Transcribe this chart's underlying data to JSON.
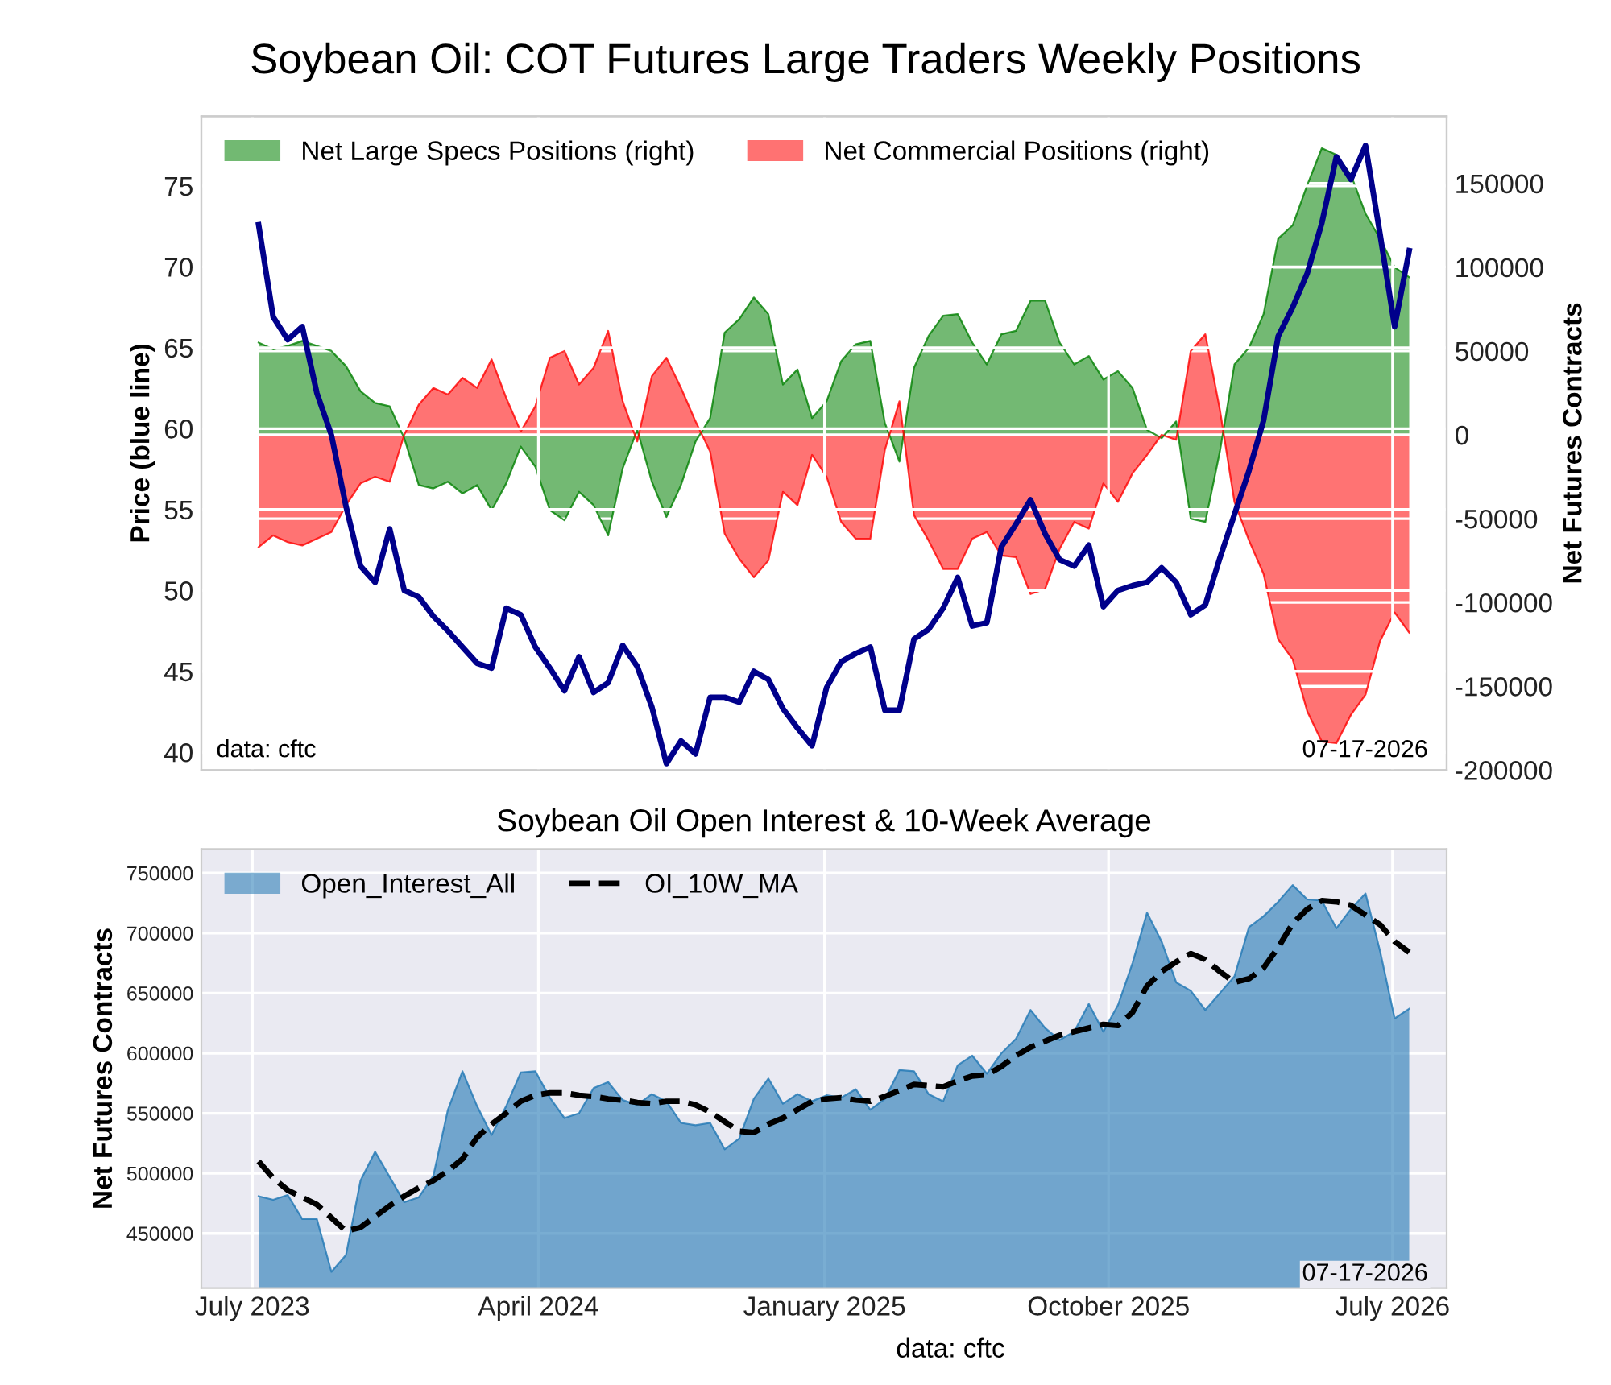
{
  "chart_data": [
    {
      "type": "line",
      "title": "Soybean Oil: COT Futures Large Traders Weekly Positions",
      "ylabel": "Price (blue line)",
      "y2label": "Net Futures Contracts",
      "x": [
        "2023-07-07",
        "2023-07-21",
        "2023-08-04",
        "2023-08-18",
        "2023-09-01",
        "2023-09-15",
        "2023-09-29",
        "2023-10-13",
        "2023-10-27",
        "2023-11-10",
        "2023-11-24",
        "2023-12-08",
        "2023-12-22",
        "2024-01-05",
        "2024-01-19",
        "2024-02-02",
        "2024-02-16",
        "2024-03-01",
        "2024-03-15",
        "2024-03-29",
        "2024-04-12",
        "2024-04-26",
        "2024-05-10",
        "2024-05-24",
        "2024-06-07",
        "2024-06-21",
        "2024-07-05",
        "2024-07-19",
        "2024-08-02",
        "2024-08-16",
        "2024-08-30",
        "2024-09-13",
        "2024-09-27",
        "2024-10-11",
        "2024-10-25",
        "2024-11-08",
        "2024-11-22",
        "2024-12-06",
        "2024-12-20",
        "2025-01-03",
        "2025-01-17",
        "2025-01-31",
        "2025-02-14",
        "2025-02-28",
        "2025-03-14",
        "2025-03-28",
        "2025-04-11",
        "2025-04-25",
        "2025-05-09",
        "2025-05-23",
        "2025-06-06",
        "2025-06-20",
        "2025-07-04",
        "2025-07-18",
        "2025-08-01",
        "2025-08-15",
        "2025-08-29",
        "2025-09-12",
        "2025-09-26",
        "2025-10-10",
        "2025-10-24",
        "2025-11-07",
        "2025-11-21",
        "2025-12-05",
        "2025-12-19",
        "2026-01-02",
        "2026-01-16",
        "2026-01-30",
        "2026-02-13",
        "2026-02-27",
        "2026-03-13",
        "2026-03-27",
        "2026-04-10",
        "2026-04-24",
        "2026-05-08",
        "2026-05-22",
        "2026-06-05",
        "2026-06-19",
        "2026-07-03",
        "2026-07-17"
      ],
      "xlim": [
        "2023-05-13",
        "2026-08-22"
      ],
      "xticks": [
        {
          "value": "2023-07-01",
          "label": null
        },
        {
          "value": "2024-04-01",
          "label": null
        },
        {
          "value": "2025-01-01",
          "label": null
        },
        {
          "value": "2025-10-01",
          "label": null
        },
        {
          "value": "2026-07-01",
          "label": null
        }
      ],
      "ylim": [
        38.9,
        79.3
      ],
      "yticks": [
        40,
        45,
        50,
        55,
        60,
        65,
        70,
        75
      ],
      "y2lim": [
        -200000,
        190000
      ],
      "y2ticks": [
        -200000,
        -150000,
        -100000,
        -50000,
        0,
        50000,
        100000,
        150000
      ],
      "tick_labels": "y",
      "grid": true,
      "legend": "top left",
      "marker": "none",
      "series": [
        {
          "axis": "y",
          "color": "#00008b",
          "values": [
            72.6,
            66.9,
            65.5,
            66.3,
            62.2,
            59.6,
            55.2,
            51.5,
            50.5,
            53.8,
            50.0,
            49.6,
            48.4,
            47.5,
            46.5,
            45.5,
            45.2,
            48.9,
            48.5,
            46.5,
            45.2,
            43.8,
            45.9,
            43.7,
            44.3,
            46.6,
            45.3,
            42.8,
            39.3,
            40.7,
            39.9,
            43.4,
            43.4,
            43.1,
            45.0,
            44.5,
            42.7,
            41.5,
            40.4,
            44.0,
            45.6,
            46.1,
            46.5,
            42.6,
            42.6,
            47.0,
            47.6,
            48.9,
            50.8,
            47.8,
            48.0,
            52.7,
            54.1,
            55.6,
            53.5,
            51.9,
            51.5,
            52.8,
            49.0,
            50.0,
            50.3,
            50.5,
            51.4,
            50.5,
            48.5,
            49.1,
            52.0,
            54.7,
            57.4,
            60.5,
            65.7,
            67.5,
            69.6,
            72.7,
            76.8,
            75.4,
            77.5,
            72.0,
            66.3,
            71.0
          ]
        },
        {
          "type": "area",
          "axis": "y2",
          "name": "Net Large Specs Positions (right)",
          "color": "#008000",
          "values": [
            55000,
            51000,
            53000,
            56000,
            53000,
            50000,
            41000,
            26000,
            19000,
            17000,
            -2000,
            -30000,
            -32000,
            -28000,
            -35000,
            -30000,
            -45000,
            -29000,
            -7000,
            -19000,
            -45000,
            -51000,
            -34000,
            -42000,
            -60000,
            -20000,
            3000,
            -28000,
            -49000,
            -30000,
            -4000,
            10000,
            61000,
            69000,
            82000,
            72000,
            30000,
            39000,
            10000,
            20000,
            44000,
            54000,
            56000,
            7000,
            -16000,
            40000,
            59000,
            71000,
            72000,
            55000,
            42000,
            60000,
            62000,
            80000,
            80000,
            55000,
            42000,
            47000,
            33000,
            38000,
            28000,
            3000,
            -2000,
            8000,
            -50000,
            -52000,
            -10000,
            42000,
            52000,
            72000,
            117000,
            125000,
            149000,
            171000,
            167000,
            155000,
            132000,
            117000,
            100000,
            94000
          ]
        },
        {
          "type": "area",
          "axis": "y2",
          "name": "Net Commercial Positions (right)",
          "color": "#ff0000",
          "values": [
            -67000,
            -60000,
            -64000,
            -66000,
            -62000,
            -58000,
            -42000,
            -29000,
            -25000,
            -28000,
            0,
            18000,
            28000,
            24000,
            34000,
            28000,
            45000,
            22000,
            2000,
            17000,
            46000,
            50000,
            30000,
            40000,
            62000,
            20000,
            -4000,
            35000,
            46000,
            28000,
            8000,
            -10000,
            -59000,
            -74000,
            -85000,
            -75000,
            -34000,
            -42000,
            -12000,
            -25000,
            -52000,
            -62000,
            -62000,
            -9000,
            20000,
            -48000,
            -63000,
            -80000,
            -80000,
            -62000,
            -58000,
            -72000,
            -73000,
            -95000,
            -92000,
            -68000,
            -52000,
            -56000,
            -29000,
            -40000,
            -23000,
            -12000,
            0,
            -3000,
            50000,
            60000,
            15000,
            -40000,
            -63000,
            -83000,
            -122000,
            -134000,
            -165000,
            -183000,
            -184000,
            -167000,
            -155000,
            -123000,
            -106000,
            -118000
          ]
        }
      ],
      "annotations": [
        "data: cftc",
        "07-17-2026"
      ]
    },
    {
      "type": "area",
      "title": "Soybean Oil Open Interest & 10-Week Average",
      "ylabel": "Net Futures Contracts",
      "x": [
        "2023-07-07",
        "2023-07-21",
        "2023-08-04",
        "2023-08-18",
        "2023-09-01",
        "2023-09-15",
        "2023-09-29",
        "2023-10-13",
        "2023-10-27",
        "2023-11-10",
        "2023-11-24",
        "2023-12-08",
        "2023-12-22",
        "2024-01-05",
        "2024-01-19",
        "2024-02-02",
        "2024-02-16",
        "2024-03-01",
        "2024-03-15",
        "2024-03-29",
        "2024-04-12",
        "2024-04-26",
        "2024-05-10",
        "2024-05-24",
        "2024-06-07",
        "2024-06-21",
        "2024-07-05",
        "2024-07-19",
        "2024-08-02",
        "2024-08-16",
        "2024-08-30",
        "2024-09-13",
        "2024-09-27",
        "2024-10-11",
        "2024-10-25",
        "2024-11-08",
        "2024-11-22",
        "2024-12-06",
        "2024-12-20",
        "2025-01-03",
        "2025-01-17",
        "2025-01-31",
        "2025-02-14",
        "2025-02-28",
        "2025-03-14",
        "2025-03-28",
        "2025-04-11",
        "2025-04-25",
        "2025-05-09",
        "2025-05-23",
        "2025-06-06",
        "2025-06-20",
        "2025-07-04",
        "2025-07-18",
        "2025-08-01",
        "2025-08-15",
        "2025-08-29",
        "2025-09-12",
        "2025-09-26",
        "2025-10-10",
        "2025-10-24",
        "2025-11-07",
        "2025-11-21",
        "2025-12-05",
        "2025-12-19",
        "2026-01-02",
        "2026-01-16",
        "2026-01-30",
        "2026-02-13",
        "2026-02-27",
        "2026-03-13",
        "2026-03-27",
        "2026-04-10",
        "2026-04-24",
        "2026-05-08",
        "2026-05-22",
        "2026-06-05",
        "2026-06-19",
        "2026-07-03",
        "2026-07-17"
      ],
      "xlim": [
        "2023-05-13",
        "2026-08-22"
      ],
      "xticks": [
        {
          "value": "2023-07-01",
          "label": "July 2023"
        },
        {
          "value": "2024-04-01",
          "label": "April 2024"
        },
        {
          "value": "2025-01-01",
          "label": "January 2025"
        },
        {
          "value": "2025-10-01",
          "label": "October 2025"
        },
        {
          "value": "2026-07-01",
          "label": "July 2026"
        }
      ],
      "ylim": [
        404500,
        770000
      ],
      "yticks": [
        450000,
        500000,
        550000,
        600000,
        650000,
        700000,
        750000
      ],
      "grid": true,
      "legend": "top left",
      "marker": "none",
      "series": [
        {
          "name": "Open_Interest_All",
          "color": "#1f77b4",
          "values": [
            481000,
            478000,
            482000,
            462000,
            462000,
            418000,
            432000,
            494000,
            518000,
            497000,
            476000,
            480000,
            498000,
            553000,
            585000,
            556000,
            532000,
            556000,
            584000,
            585000,
            563000,
            546000,
            550000,
            571000,
            576000,
            561000,
            557000,
            566000,
            560000,
            542000,
            540000,
            542000,
            520000,
            529000,
            562000,
            579000,
            558000,
            566000,
            560000,
            565000,
            563000,
            570000,
            553000,
            562000,
            586000,
            585000,
            566000,
            560000,
            590000,
            598000,
            583000,
            600000,
            612000,
            636000,
            621000,
            611000,
            618000,
            641000,
            618000,
            640000,
            675000,
            717000,
            693000,
            659000,
            652000,
            636000,
            650000,
            664000,
            705000,
            714000,
            726000,
            740000,
            728000,
            727000,
            704000,
            720000,
            733000,
            685000,
            629000,
            637000
          ]
        },
        {
          "type": "line",
          "name": "OI_10W_MA",
          "color": "#000000",
          "line_style": "dashed",
          "values": [
            510000,
            496000,
            486000,
            480000,
            474000,
            463000,
            452000,
            455000,
            464000,
            473000,
            481000,
            488000,
            494000,
            502000,
            512000,
            530000,
            541000,
            550000,
            560000,
            565000,
            567000,
            567000,
            565000,
            564000,
            562000,
            561000,
            559000,
            558000,
            560000,
            560000,
            557000,
            551000,
            543000,
            535000,
            534000,
            541000,
            546000,
            553000,
            560000,
            562000,
            563000,
            561000,
            560000,
            564000,
            569000,
            574000,
            573000,
            572000,
            577000,
            581000,
            582000,
            589000,
            598000,
            605000,
            610000,
            615000,
            618000,
            621000,
            624000,
            623000,
            634000,
            656000,
            668000,
            676000,
            683000,
            678000,
            668000,
            659000,
            662000,
            671000,
            688000,
            708000,
            720000,
            727000,
            726000,
            723000,
            715000,
            707000,
            693000,
            684000
          ]
        }
      ],
      "annotations": [
        "07-17-2026",
        "data: cftc"
      ]
    }
  ]
}
